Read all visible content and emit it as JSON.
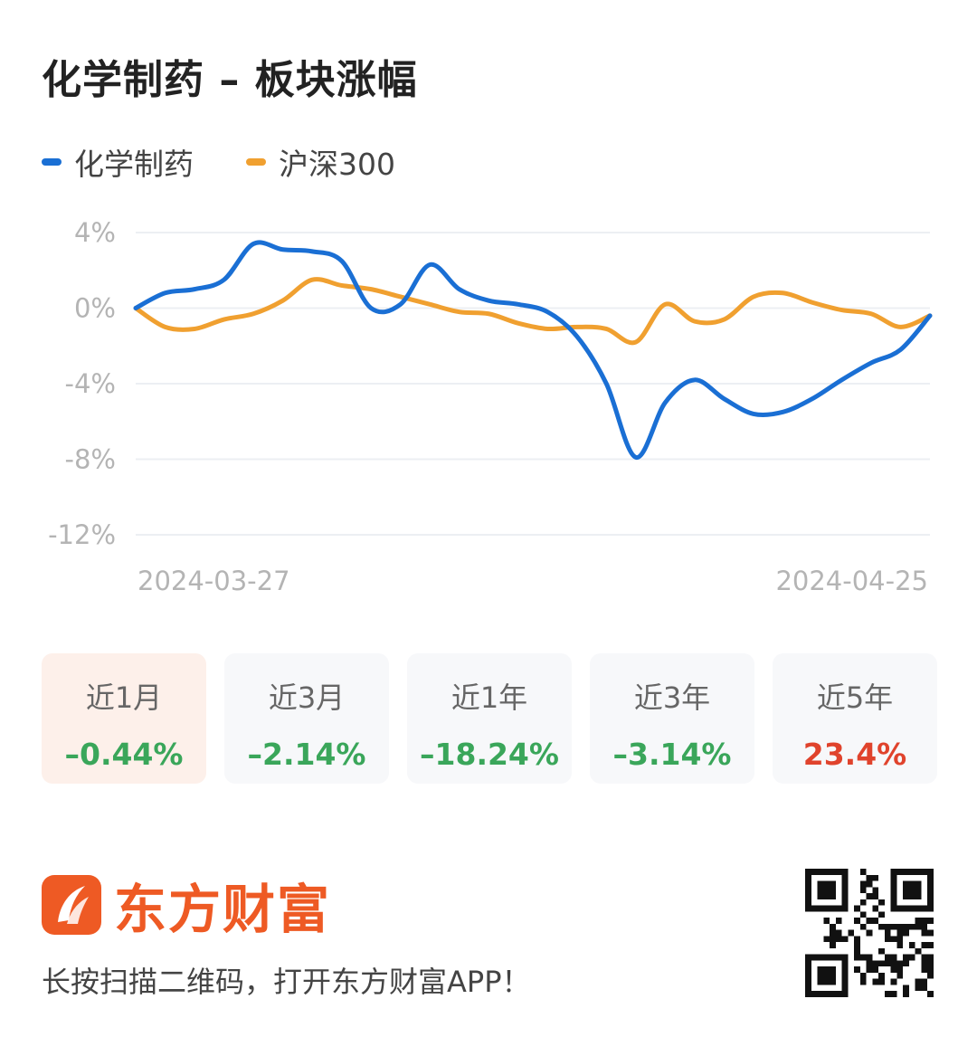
{
  "title": "化学制药 – 板块涨幅",
  "colors": {
    "sector": "#1a6fd4",
    "index": "#f0a030",
    "negative": "#3aa65a",
    "positive": "#e0432c",
    "brand": "#ee5a24"
  },
  "chart_data": {
    "type": "line",
    "x_labels": [
      "2024-03-27",
      "2024-04-25"
    ],
    "ylim": [
      -12,
      4
    ],
    "y_ticks": [
      "4%",
      "0%",
      "-4%",
      "-8%",
      "-12%"
    ],
    "grid": true,
    "legend_position": "top-left",
    "series": [
      {
        "name": "化学制药",
        "color": "#1a6fd4",
        "values": [
          0,
          0.8,
          1,
          1.5,
          3.4,
          3.1,
          3.0,
          2.5,
          0,
          0.2,
          2.3,
          1,
          0.4,
          0.2,
          -0.2,
          -1.5,
          -4,
          -7.9,
          -5,
          -3.8,
          -4.8,
          -5.6,
          -5.5,
          -4.8,
          -3.8,
          -2.9,
          -2.2,
          -0.4
        ]
      },
      {
        "name": "沪深300",
        "color": "#f0a030",
        "values": [
          0,
          -1,
          -1.1,
          -0.6,
          -0.3,
          0.4,
          1.5,
          1.2,
          1,
          0.6,
          0.2,
          -0.2,
          -0.3,
          -0.8,
          -1.1,
          -1,
          -1.1,
          -1.8,
          0.2,
          -0.7,
          -0.6,
          0.6,
          0.8,
          0.3,
          -0.1,
          -0.3,
          -1,
          -0.4
        ]
      }
    ]
  },
  "periods": [
    {
      "label": "近1月",
      "value": "–0.44%",
      "sign": "neg",
      "active": true
    },
    {
      "label": "近3月",
      "value": "–2.14%",
      "sign": "neg",
      "active": false
    },
    {
      "label": "近1年",
      "value": "–18.24%",
      "sign": "neg",
      "active": false
    },
    {
      "label": "近3年",
      "value": "–3.14%",
      "sign": "neg",
      "active": false
    },
    {
      "label": "近5年",
      "value": "23.4%",
      "sign": "pos",
      "active": false
    }
  ],
  "brand": {
    "name": "东方财富",
    "logo_icon": "eastmoney-logo-icon"
  },
  "tagline": "长按扫描二维码，打开东方财富APP！",
  "qr_icon": "qr-code-icon"
}
